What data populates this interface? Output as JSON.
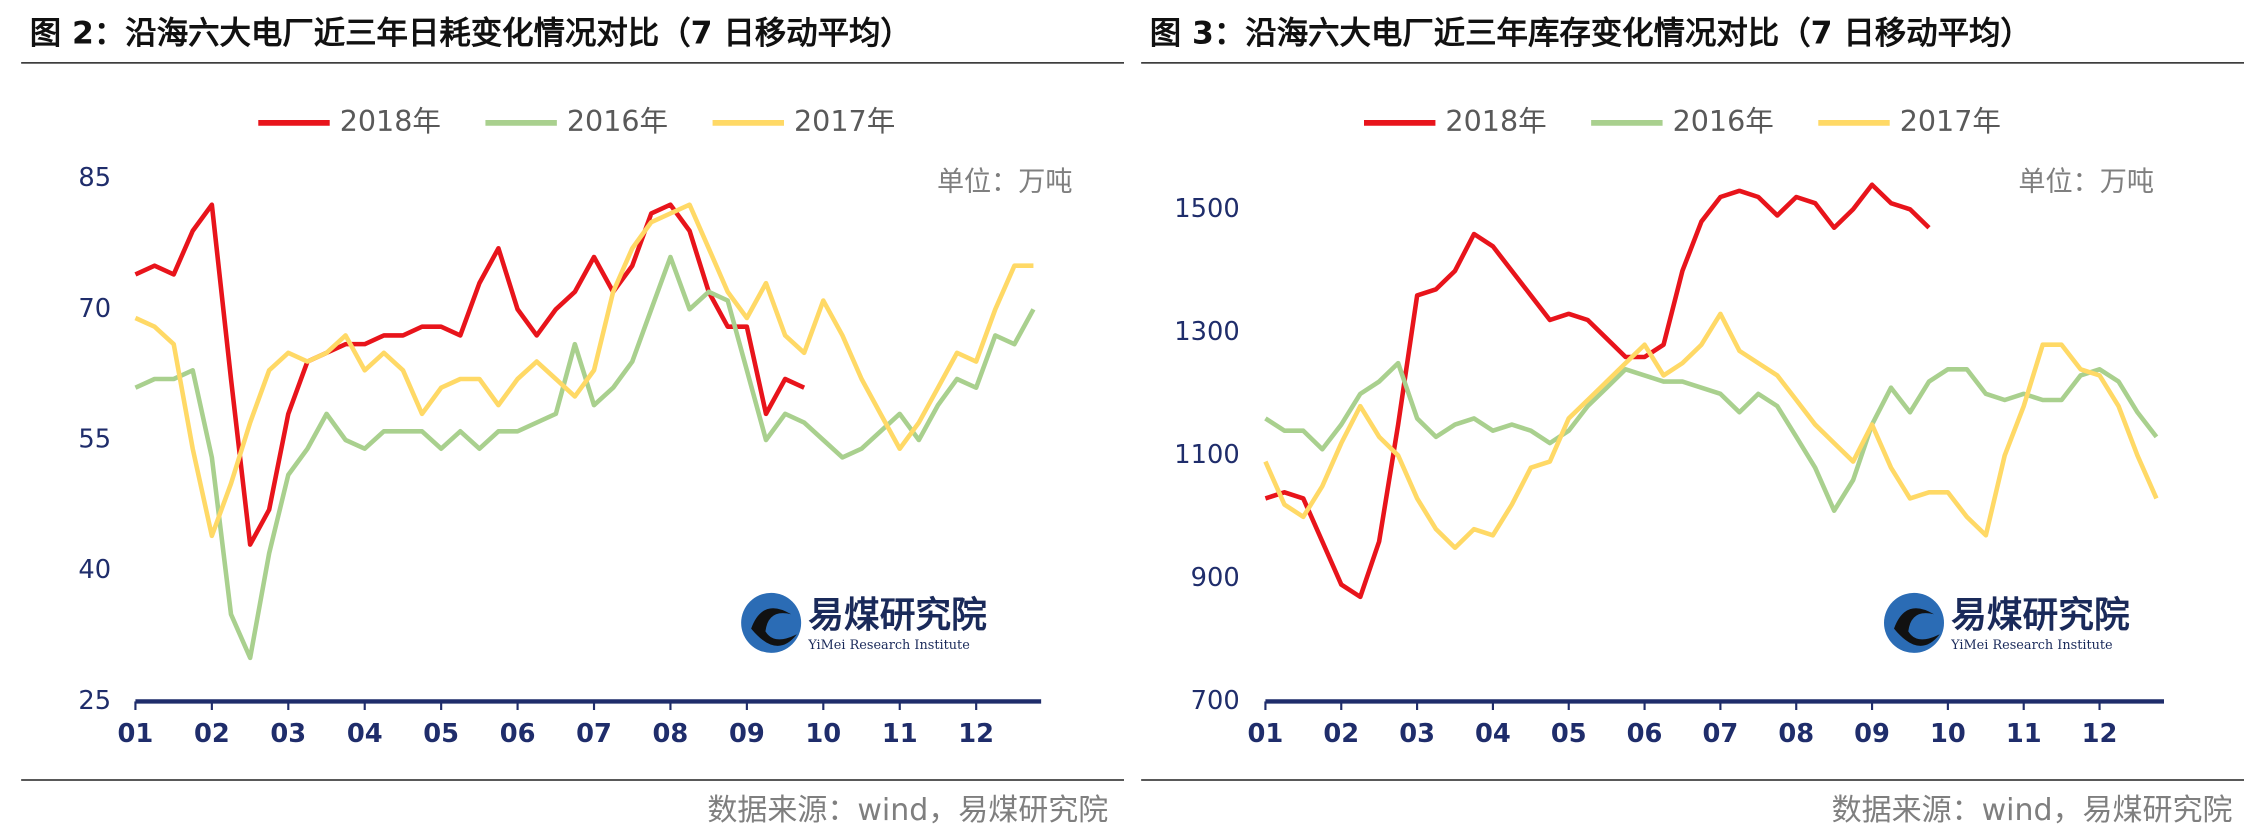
{
  "chart_data": [
    {
      "type": "line",
      "title": "图 2：沿海六大电厂近三年日耗变化情况对比（7 日移动平均）",
      "unit": "单位：万吨",
      "watermark": "易煤研究院",
      "watermark_subtitle": "YiMei Research Institute",
      "source": "数据来源：wind，易煤研究院",
      "x": [
        1,
        1.25,
        1.5,
        1.75,
        2,
        2.25,
        2.5,
        2.75,
        3,
        3.25,
        3.5,
        3.75,
        4,
        4.25,
        4.5,
        4.75,
        5,
        5.25,
        5.5,
        5.75,
        6,
        6.25,
        6.5,
        6.75,
        7,
        7.25,
        7.5,
        7.75,
        8,
        8.25,
        8.5,
        8.75,
        9,
        9.25,
        9.5,
        9.75,
        10,
        10.25,
        10.5,
        10.75,
        11,
        11.25,
        11.5,
        11.75,
        12,
        12.25,
        12.5,
        12.75
      ],
      "xlim": [
        1,
        12.85
      ],
      "xticks": [
        {
          "value": 1,
          "label": "01"
        },
        {
          "value": 2,
          "label": "02"
        },
        {
          "value": 3,
          "label": "03"
        },
        {
          "value": 4,
          "label": "04"
        },
        {
          "value": 5,
          "label": "05"
        },
        {
          "value": 6,
          "label": "06"
        },
        {
          "value": 7,
          "label": "07"
        },
        {
          "value": 8,
          "label": "08"
        },
        {
          "value": 9,
          "label": "09"
        },
        {
          "value": 10,
          "label": "10"
        },
        {
          "value": 11,
          "label": "11"
        },
        {
          "value": 12,
          "label": "12"
        }
      ],
      "ylim": [
        25,
        85
      ],
      "yticks": [
        25,
        40,
        55,
        70,
        85
      ],
      "series": [
        {
          "name": "2018年",
          "color": "#e8141b",
          "values": [
            74,
            75,
            74,
            79,
            82,
            62,
            43,
            47,
            58,
            64,
            65,
            66,
            66,
            67,
            67,
            68,
            68,
            67,
            73,
            77,
            70,
            67,
            70,
            72,
            76,
            72,
            75,
            81,
            82,
            79,
            72,
            68,
            68,
            58,
            62,
            61,
            null,
            null,
            null,
            null,
            null,
            null,
            null,
            null,
            null,
            null,
            null,
            null
          ]
        },
        {
          "name": "2016年",
          "color": "#a9d08e",
          "values": [
            61,
            62,
            62,
            63,
            53,
            35,
            30,
            42,
            51,
            54,
            58,
            55,
            54,
            56,
            56,
            56,
            54,
            56,
            54,
            56,
            56,
            57,
            58,
            66,
            59,
            61,
            64,
            70,
            76,
            70,
            72,
            71,
            63,
            55,
            58,
            57,
            55,
            53,
            54,
            56,
            58,
            55,
            59,
            62,
            61,
            67,
            66,
            70
          ]
        },
        {
          "name": "2017年",
          "color": "#ffd966",
          "values": [
            69,
            68,
            66,
            54,
            44,
            50,
            57,
            63,
            65,
            64,
            65,
            67,
            63,
            65,
            63,
            58,
            61,
            62,
            62,
            59,
            62,
            64,
            62,
            60,
            63,
            72,
            77,
            80,
            81,
            82,
            77,
            72,
            69,
            73,
            67,
            65,
            71,
            67,
            62,
            58,
            54,
            57,
            61,
            65,
            64,
            70,
            75,
            75
          ]
        }
      ]
    },
    {
      "type": "line",
      "title": "图 3：沿海六大电厂近三年库存变化情况对比（7 日移动平均）",
      "unit": "单位：万吨",
      "watermark": "易煤研究院",
      "watermark_subtitle": "YiMei Research Institute",
      "source": "数据来源：wind，易煤研究院",
      "x": [
        1,
        1.25,
        1.5,
        1.75,
        2,
        2.25,
        2.5,
        2.75,
        3,
        3.25,
        3.5,
        3.75,
        4,
        4.25,
        4.5,
        4.75,
        5,
        5.25,
        5.5,
        5.75,
        6,
        6.25,
        6.5,
        6.75,
        7,
        7.25,
        7.5,
        7.75,
        8,
        8.25,
        8.5,
        8.75,
        9,
        9.25,
        9.5,
        9.75,
        10,
        10.25,
        10.5,
        10.75,
        11,
        11.25,
        11.5,
        11.75,
        12,
        12.25,
        12.5,
        12.75
      ],
      "xlim": [
        1,
        12.85
      ],
      "xticks": [
        {
          "value": 1,
          "label": "01"
        },
        {
          "value": 2,
          "label": "02"
        },
        {
          "value": 3,
          "label": "03"
        },
        {
          "value": 4,
          "label": "04"
        },
        {
          "value": 5,
          "label": "05"
        },
        {
          "value": 6,
          "label": "06"
        },
        {
          "value": 7,
          "label": "07"
        },
        {
          "value": 8,
          "label": "08"
        },
        {
          "value": 9,
          "label": "09"
        },
        {
          "value": 10,
          "label": "10"
        },
        {
          "value": 11,
          "label": "11"
        },
        {
          "value": 12,
          "label": "12"
        }
      ],
      "ylim": [
        700,
        1550
      ],
      "yticks": [
        700,
        900,
        1100,
        1300,
        1500
      ],
      "series": [
        {
          "name": "2018年",
          "color": "#e8141b",
          "values": [
            1030,
            1040,
            1030,
            960,
            890,
            870,
            960,
            1150,
            1360,
            1370,
            1400,
            1460,
            1440,
            1400,
            1360,
            1320,
            1330,
            1320,
            1290,
            1260,
            1260,
            1280,
            1400,
            1480,
            1520,
            1530,
            1520,
            1490,
            1520,
            1510,
            1470,
            1500,
            1540,
            1510,
            1500,
            1470,
            null,
            null,
            null,
            null,
            null,
            null,
            null,
            null,
            null,
            null,
            null,
            null
          ]
        },
        {
          "name": "2016年",
          "color": "#a9d08e",
          "values": [
            1160,
            1140,
            1140,
            1110,
            1150,
            1200,
            1220,
            1250,
            1160,
            1130,
            1150,
            1160,
            1140,
            1150,
            1140,
            1120,
            1140,
            1180,
            1210,
            1240,
            1230,
            1220,
            1220,
            1210,
            1200,
            1170,
            1200,
            1180,
            1130,
            1080,
            1010,
            1060,
            1150,
            1210,
            1170,
            1220,
            1240,
            1240,
            1200,
            1190,
            1200,
            1190,
            1190,
            1230,
            1240,
            1220,
            1170,
            1130
          ]
        },
        {
          "name": "2017年",
          "color": "#ffd966",
          "values": [
            1090,
            1020,
            1000,
            1050,
            1120,
            1180,
            1130,
            1100,
            1030,
            980,
            950,
            980,
            970,
            1020,
            1080,
            1090,
            1160,
            1190,
            1220,
            1250,
            1280,
            1230,
            1250,
            1280,
            1330,
            1270,
            1250,
            1230,
            1190,
            1150,
            1120,
            1090,
            1150,
            1080,
            1030,
            1040,
            1040,
            1000,
            970,
            1100,
            1180,
            1280,
            1280,
            1240,
            1230,
            1180,
            1100,
            1030
          ]
        }
      ]
    }
  ]
}
